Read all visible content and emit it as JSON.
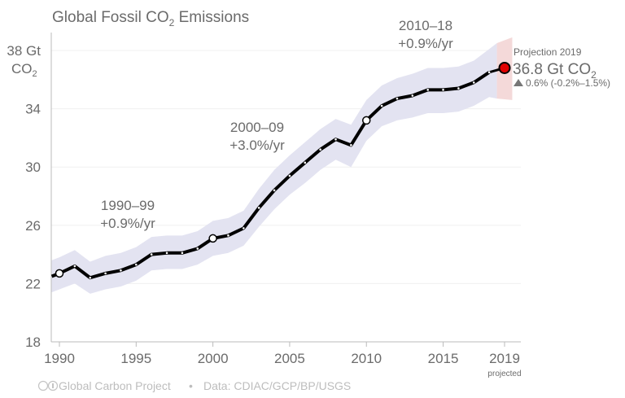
{
  "chart_data": {
    "type": "line",
    "title": "Global Fossil CO",
    "title_sub": "2",
    "title_tail": " Emissions",
    "ylabel_line1": "38 Gt",
    "ylabel_line2": "CO",
    "ylabel_sub": "2",
    "yticks": [
      18,
      22,
      26,
      30,
      34
    ],
    "ylim": [
      18,
      38
    ],
    "xlim": [
      1989.5,
      2019.5
    ],
    "xticks": [
      "1990",
      "1995",
      "2000",
      "2005",
      "2010",
      "2015",
      "2019"
    ],
    "xtick_note": "projected",
    "grid": true,
    "x": [
      1989.5,
      1990,
      1991,
      1992,
      1993,
      1994,
      1995,
      1996,
      1997,
      1998,
      1999,
      2000,
      2001,
      2002,
      2003,
      2004,
      2005,
      2006,
      2007,
      2008,
      2009,
      2010,
      2011,
      2012,
      2013,
      2014,
      2015,
      2016,
      2017,
      2018
    ],
    "values": [
      22.5,
      22.7,
      23.2,
      22.4,
      22.7,
      22.9,
      23.3,
      24.0,
      24.1,
      24.1,
      24.4,
      25.1,
      25.3,
      25.8,
      27.2,
      28.4,
      29.4,
      30.3,
      31.2,
      31.9,
      31.5,
      33.2,
      34.2,
      34.7,
      34.9,
      35.3,
      35.3,
      35.4,
      35.8,
      36.5
    ],
    "band_lower": [
      21.4,
      21.6,
      22.0,
      21.3,
      21.6,
      21.8,
      22.2,
      22.9,
      23.0,
      23.0,
      23.3,
      23.9,
      24.1,
      24.6,
      25.9,
      27.1,
      28.1,
      28.9,
      29.8,
      30.5,
      30.0,
      31.8,
      32.8,
      33.2,
      33.4,
      33.7,
      33.7,
      33.8,
      34.2,
      34.8
    ],
    "band_upper": [
      23.6,
      23.8,
      24.3,
      23.5,
      23.9,
      24.1,
      24.5,
      25.2,
      25.3,
      25.3,
      25.6,
      26.3,
      26.5,
      27.0,
      28.5,
      29.8,
      30.8,
      31.7,
      32.6,
      33.3,
      32.9,
      34.6,
      35.6,
      36.1,
      36.4,
      36.8,
      36.8,
      36.9,
      37.3,
      38.1
    ],
    "highlight_years": [
      1990,
      2000,
      2010
    ],
    "projection": {
      "year": 2019,
      "value": 36.8,
      "lower": 34.6,
      "upper": 38.9,
      "label": "Projection 2019",
      "value_label": "36.8 Gt CO",
      "value_sub": "2",
      "change_label": "0.6% (-0.2%–1.5%)"
    },
    "annotations": [
      {
        "period": "1990–99",
        "rate": "+0.9%/yr"
      },
      {
        "period": "2000–09",
        "rate": "+3.0%/yr"
      },
      {
        "period": "2010–18",
        "rate": "+0.9%/yr"
      }
    ],
    "colors": {
      "line": "#000000",
      "band": "#e3e3f1",
      "projection_band": "#f4d9d9",
      "projection_dot": "#e00000",
      "grid": "#f0f0f0",
      "axis": "#bbbbbb"
    }
  },
  "footer": {
    "cc_icon": "creative-commons-icon",
    "org": "Global Carbon Project",
    "separator": "•",
    "source": "Data: CDIAC/GCP/BP/USGS"
  }
}
